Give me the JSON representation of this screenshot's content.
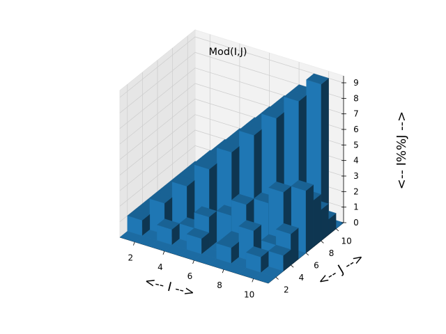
{
  "chart_data": {
    "type": "bar3d",
    "title": "Mod(I,J)",
    "xlabel": "<-- I -->",
    "ylabel": "<-- J -->",
    "zlabel": "<-- I%%J -->",
    "x_ticks": [
      "2",
      "4",
      "6",
      "8",
      "10"
    ],
    "y_ticks": [
      "2",
      "4",
      "6",
      "8",
      "10"
    ],
    "z_ticks": [
      "0",
      "1",
      "2",
      "3",
      "4",
      "5",
      "6",
      "7",
      "8",
      "9"
    ],
    "xlim": [
      1,
      11
    ],
    "ylim": [
      1,
      11
    ],
    "zlim": [
      0,
      9
    ],
    "i_values": [
      1,
      2,
      3,
      4,
      5,
      6,
      7,
      8,
      9,
      10
    ],
    "j_values": [
      1,
      2,
      3,
      4,
      5,
      6,
      7,
      8,
      9,
      10
    ],
    "z_formula": "I mod J",
    "grid": true,
    "bar_color": "#1f77b4"
  }
}
